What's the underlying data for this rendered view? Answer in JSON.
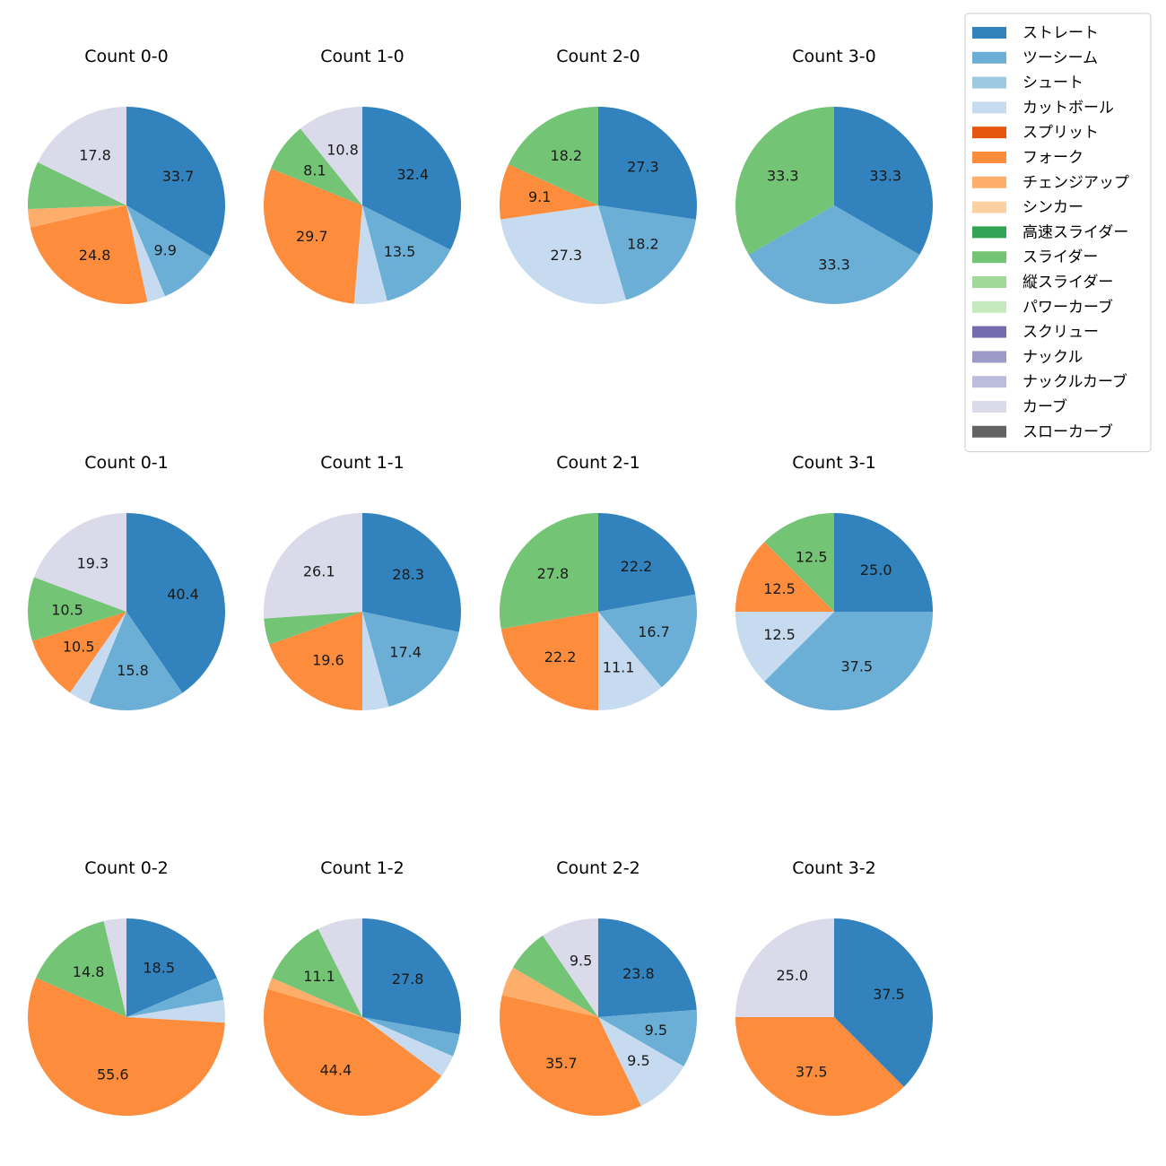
{
  "chart_data": {
    "type": "pie",
    "categories": [
      "ストレート",
      "ツーシーム",
      "シュート",
      "カットボール",
      "スプリット",
      "フォーク",
      "チェンジアップ",
      "シンカー",
      "高速スライダー",
      "スライダー",
      "縦スライダー",
      "パワーカーブ",
      "スクリュー",
      "ナックル",
      "ナックルカーブ",
      "カーブ",
      "スローカーブ"
    ],
    "colors": [
      "#3182bd",
      "#6baed6",
      "#9ecae1",
      "#c6dbef",
      "#e6550d",
      "#fd8d3c",
      "#fdae6b",
      "#fdd0a2",
      "#31a354",
      "#74c476",
      "#a1d99b",
      "#c7e9c0",
      "#756bb1",
      "#9e9ac8",
      "#bcbddc",
      "#dadaeb",
      "#636363"
    ],
    "panels": [
      {
        "title": "Count 0-0",
        "values": {
          "ストレート": 33.7,
          "ツーシーム": 9.9,
          "カットボール": 3.0,
          "フォーク": 24.8,
          "チェンジアップ": 3.0,
          "スライダー": 7.8,
          "カーブ": 17.8
        }
      },
      {
        "title": "Count 1-0",
        "values": {
          "ストレート": 32.4,
          "ツーシーム": 13.5,
          "カットボール": 5.4,
          "フォーク": 29.7,
          "スライダー": 8.1,
          "カーブ": 10.8
        }
      },
      {
        "title": "Count 2-0",
        "values": {
          "ストレート": 27.3,
          "ツーシーム": 18.2,
          "カットボール": 27.3,
          "フォーク": 9.1,
          "スライダー": 18.2
        }
      },
      {
        "title": "Count 3-0",
        "values": {
          "ストレート": 33.3,
          "ツーシーム": 33.3,
          "スライダー": 33.3
        }
      },
      {
        "title": "Count 0-1",
        "values": {
          "ストレート": 40.4,
          "ツーシーム": 15.8,
          "カットボール": 3.5,
          "フォーク": 10.5,
          "スライダー": 10.5,
          "カーブ": 19.3
        }
      },
      {
        "title": "Count 1-1",
        "values": {
          "ストレート": 28.3,
          "ツーシーム": 17.4,
          "カットボール": 4.3,
          "フォーク": 19.6,
          "スライダー": 4.3,
          "カーブ": 26.1
        }
      },
      {
        "title": "Count 2-1",
        "values": {
          "ストレート": 22.2,
          "ツーシーム": 16.7,
          "カットボール": 11.1,
          "フォーク": 22.2,
          "スライダー": 27.8
        }
      },
      {
        "title": "Count 3-1",
        "values": {
          "ストレート": 25.0,
          "ツーシーム": 37.5,
          "カットボール": 12.5,
          "フォーク": 12.5,
          "スライダー": 12.5
        }
      },
      {
        "title": "Count 0-2",
        "values": {
          "ストレート": 18.5,
          "ツーシーム": 3.7,
          "カットボール": 3.7,
          "フォーク": 55.6,
          "スライダー": 14.8,
          "カーブ": 3.7
        }
      },
      {
        "title": "Count 1-2",
        "values": {
          "ストレート": 27.8,
          "ツーシーム": 3.7,
          "カットボール": 3.7,
          "フォーク": 44.4,
          "チェンジアップ": 1.9,
          "スライダー": 11.1,
          "カーブ": 7.4
        }
      },
      {
        "title": "Count 2-2",
        "values": {
          "ストレート": 23.8,
          "ツーシーム": 9.5,
          "カットボール": 9.5,
          "フォーク": 35.7,
          "チェンジアップ": 4.8,
          "スライダー": 7.1,
          "カーブ": 9.5
        }
      },
      {
        "title": "Count 3-2",
        "values": {
          "ストレート": 37.5,
          "フォーク": 37.5,
          "カーブ": 25.0
        }
      }
    ],
    "label_min_percent": 8,
    "start_angle_deg": 90,
    "direction": "clockwise",
    "legend_location": "upper-right"
  }
}
